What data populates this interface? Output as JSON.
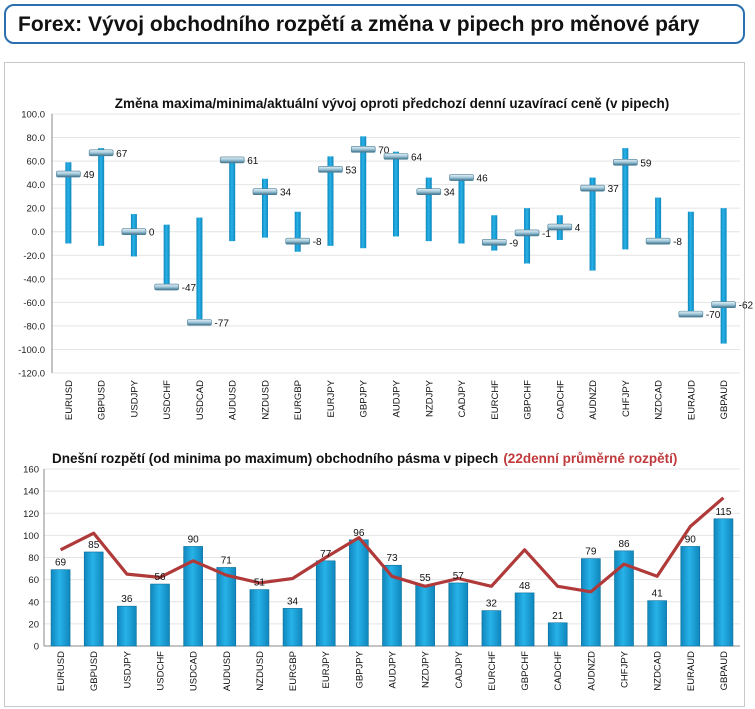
{
  "page": {
    "title": "Forex: Vývoj obchodního rozpětí a změna v pipech pro měnové páry"
  },
  "colors": {
    "header_border": "#2a6fb0",
    "bar_blue": "#1ba1d8",
    "bar_dark": "#0e6e98",
    "line_red": "#b03a3a",
    "title_red": "#c0393b"
  },
  "chart_data": [
    {
      "type": "range",
      "title": "Změna maxima/minima/aktuální vývoj oproti předchozí denní uzavírací ceně (v pipech)",
      "categories": [
        "EURUSD",
        "GBPUSD",
        "USDJPY",
        "USDCHF",
        "USDCAD",
        "AUDUSD",
        "NZDUSD",
        "EURGBP",
        "EURJPY",
        "GBPJPY",
        "AUDJPY",
        "NZDJPY",
        "CADJPY",
        "EURCHF",
        "GBPCHF",
        "CADCHF",
        "AUDNZD",
        "CHFJPY",
        "NZDCAD",
        "EURAUD",
        "GBPAUD"
      ],
      "high": [
        59,
        71,
        15,
        6,
        12,
        61,
        45,
        17,
        64,
        81,
        68,
        46,
        47,
        14,
        20,
        14,
        46,
        71,
        29,
        17,
        20
      ],
      "low": [
        -10,
        -12,
        -21,
        -46,
        -77,
        -8,
        -5,
        -17,
        -12,
        -14,
        -4,
        -8,
        -10,
        -16,
        -27,
        -7,
        -33,
        -15,
        -10,
        -70,
        -95
      ],
      "current": [
        49,
        67,
        0,
        -47,
        -77,
        61,
        34,
        -8,
        53,
        70,
        64,
        34,
        46,
        -9,
        -1,
        4,
        37,
        59,
        -8,
        -70,
        -62
      ],
      "current_labels": [
        "49",
        "67",
        "0",
        "-47",
        "-77",
        "61",
        "34",
        "-8",
        "53",
        "70",
        "64",
        "34",
        "46",
        "-9",
        "-1",
        "4",
        "37",
        "59",
        "-8",
        "-70",
        "-62"
      ],
      "ylim": [
        -120,
        100
      ],
      "yticks": [
        "100.0",
        "80.0",
        "60.0",
        "40.0",
        "20.0",
        "0.0",
        "-20.0",
        "-40.0",
        "-60.0",
        "-80.0",
        "-100.0",
        "-120.0"
      ],
      "grid": true
    },
    {
      "type": "bar",
      "title": "Dnešní rozpětí (od minima po maximum) obchodního pásma v pipech",
      "title_highlight": "(22denní průměrné rozpětí)",
      "categories": [
        "EURUSD",
        "GBPUSD",
        "USDJPY",
        "USDCHF",
        "USDCAD",
        "AUDUSD",
        "NZDUSD",
        "EURGBP",
        "EURJPY",
        "GBPJPY",
        "AUDJPY",
        "NZDJPY",
        "CADJPY",
        "EURCHF",
        "GBPCHF",
        "CADCHF",
        "AUDNZD",
        "CHFJPY",
        "NZDCAD",
        "EURAUD",
        "GBPAUD"
      ],
      "series": [
        {
          "values": [
            69,
            85,
            36,
            56,
            90,
            71,
            51,
            34,
            77,
            96,
            73,
            55,
            57,
            32,
            48,
            21,
            79,
            86,
            41,
            90,
            115
          ]
        },
        {
          "values": [
            87,
            102,
            65,
            62,
            77,
            64,
            57,
            61,
            80,
            98,
            63,
            54,
            61,
            54,
            87,
            54,
            49,
            74,
            63,
            108,
            134
          ]
        }
      ],
      "value_labels": [
        "69",
        "85",
        "36",
        "56",
        "90",
        "71",
        "51",
        "34",
        "77",
        "96",
        "73",
        "55",
        "57",
        "32",
        "48",
        "21",
        "79",
        "86",
        "41",
        "90",
        "115"
      ],
      "ylim": [
        0,
        160
      ],
      "yticks": [
        "160",
        "140",
        "120",
        "100",
        "80",
        "60",
        "40",
        "20",
        "0"
      ],
      "grid": true
    }
  ]
}
